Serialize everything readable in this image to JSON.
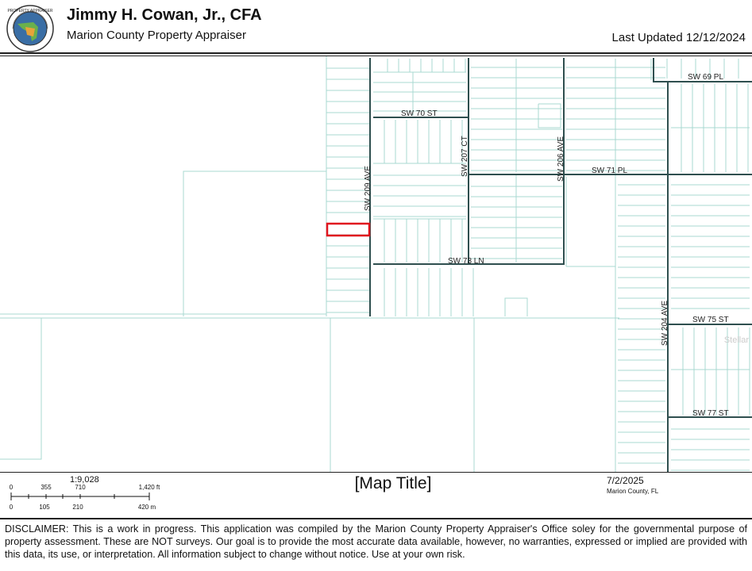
{
  "header": {
    "name": "Jimmy H. Cowan, Jr., CFA",
    "organization": "Marion County Property Appraiser",
    "last_updated": "Last Updated 12/12/2024",
    "seal_text": "PROPERTY APPRAISER"
  },
  "map": {
    "streets": [
      {
        "id": "sw-69-pl",
        "label": "SW 69 PL"
      },
      {
        "id": "sw-70-st",
        "label": "SW 70 ST"
      },
      {
        "id": "sw-71-pl",
        "label": "SW 71 PL"
      },
      {
        "id": "sw-73-ln",
        "label": "SW 73 LN"
      },
      {
        "id": "sw-75-st",
        "label": "SW 75 ST"
      },
      {
        "id": "sw-77-st",
        "label": "SW 77 ST"
      },
      {
        "id": "sw-209-ave",
        "label": "SW 209 AVE"
      },
      {
        "id": "sw-207-ct",
        "label": "SW 207 CT"
      },
      {
        "id": "sw-206-ave",
        "label": "SW 206 AVE"
      },
      {
        "id": "sw-204-ave",
        "label": "SW 204 AVE"
      }
    ],
    "highlight_color": "#e0141e",
    "parcel_line_color": "#a8d8d2",
    "road_color": "#2f4f4f",
    "watermark": "Stellar"
  },
  "footer": {
    "scale_ratio": "1:9,028",
    "scale_ft": [
      "0",
      "355",
      "710",
      "1,420 ft"
    ],
    "scale_m": [
      "0",
      "105",
      "210",
      "420 m"
    ],
    "map_title": "[Map Title]",
    "date": "7/2/2025",
    "county": "Marion County, FL"
  },
  "disclaimer": "DISCLAIMER: This is a work in progress. This application was compiled by the Marion County Property Appraiser's Office soley for the governmental purpose of property assessment. These are NOT surveys. Our goal is to provide the most accurate data available, however, no warranties, expressed or implied are provided with this data, its use, or interpretation. All information subject to change without notice. Use at your own risk."
}
